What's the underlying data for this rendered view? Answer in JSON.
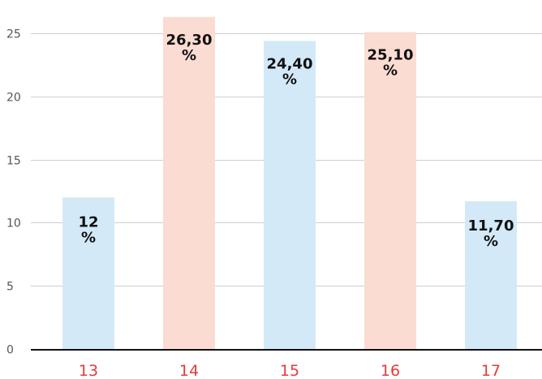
{
  "chart_data": {
    "type": "bar",
    "categories": [
      "13",
      "14",
      "15",
      "16",
      "17"
    ],
    "values": [
      12,
      26.3,
      24.4,
      25.1,
      11.7
    ],
    "labels": [
      [
        "12",
        "%"
      ],
      [
        "26,30",
        "%"
      ],
      [
        "24,40",
        "%"
      ],
      [
        "25,10",
        "%"
      ],
      [
        "11,70",
        "%"
      ]
    ],
    "bar_colors": [
      "#d3e9f8",
      "#fbdcd2",
      "#d3e9f8",
      "#fbdcd2",
      "#d3e9f8"
    ],
    "category_label_color": "#e23b3b",
    "yticks": [
      0,
      5,
      10,
      15,
      20,
      25
    ],
    "ylim": [
      0,
      27
    ],
    "grid": "horizontal",
    "title": "",
    "xlabel": "",
    "ylabel": ""
  }
}
